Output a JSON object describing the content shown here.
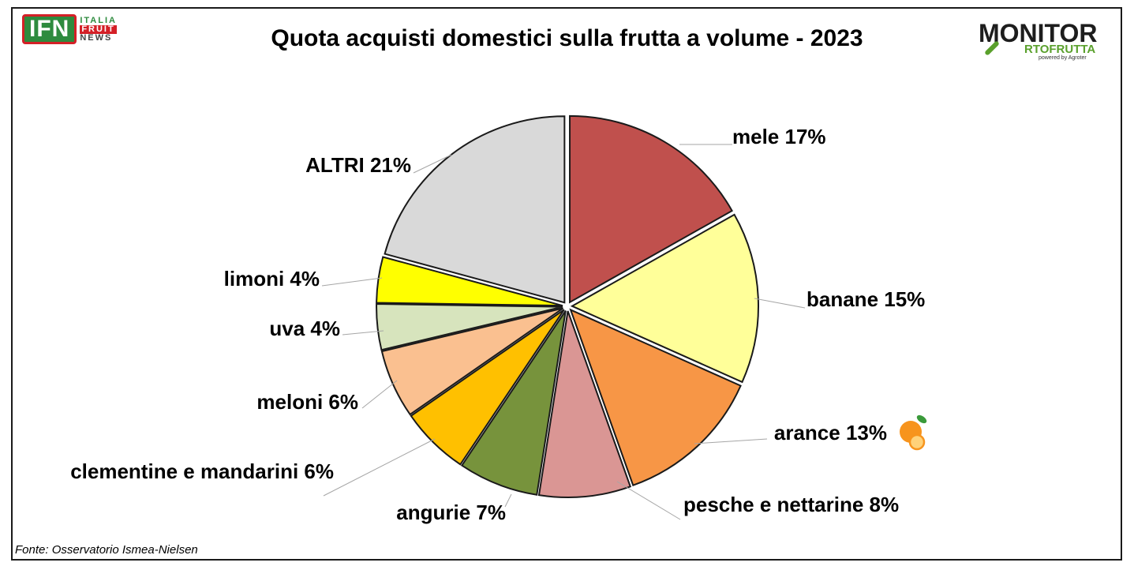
{
  "logos": {
    "ifn": {
      "mark": "IFN",
      "line1": "ITALIA",
      "line2": "FRUIT",
      "line3": "NEWS"
    },
    "monitor": {
      "line1": "MONITOR",
      "line2": "RTOFRUTTA",
      "line3": "powered by Agroter"
    }
  },
  "source": "Fonte: Osservatorio Ismea-Nielsen",
  "chart_data": {
    "type": "pie",
    "title": "Quota acquisti domestici sulla frutta a volume - 2023",
    "slices": [
      {
        "label": "mele 17%",
        "value": 17,
        "color": "#c0504d"
      },
      {
        "label": "banane 15%",
        "value": 15,
        "color": "#ffff99"
      },
      {
        "label": "arance 13%",
        "value": 13,
        "color": "#f79646",
        "icon": "orange-fruit-icon"
      },
      {
        "label": "pesche e nettarine 8%",
        "value": 8,
        "color": "#da9694"
      },
      {
        "label": "angurie 7%",
        "value": 7,
        "color": "#77933c"
      },
      {
        "label": "clementine e mandarini 6%",
        "value": 6,
        "color": "#ffc000"
      },
      {
        "label": "meloni 6%",
        "value": 6,
        "color": "#fac090"
      },
      {
        "label": "uva 4%",
        "value": 4,
        "color": "#d7e4bd"
      },
      {
        "label": "limoni 4%",
        "value": 4,
        "color": "#ffff00"
      },
      {
        "label": "ALTRI 21%",
        "value": 21,
        "color": "#d9d9d9"
      }
    ]
  }
}
